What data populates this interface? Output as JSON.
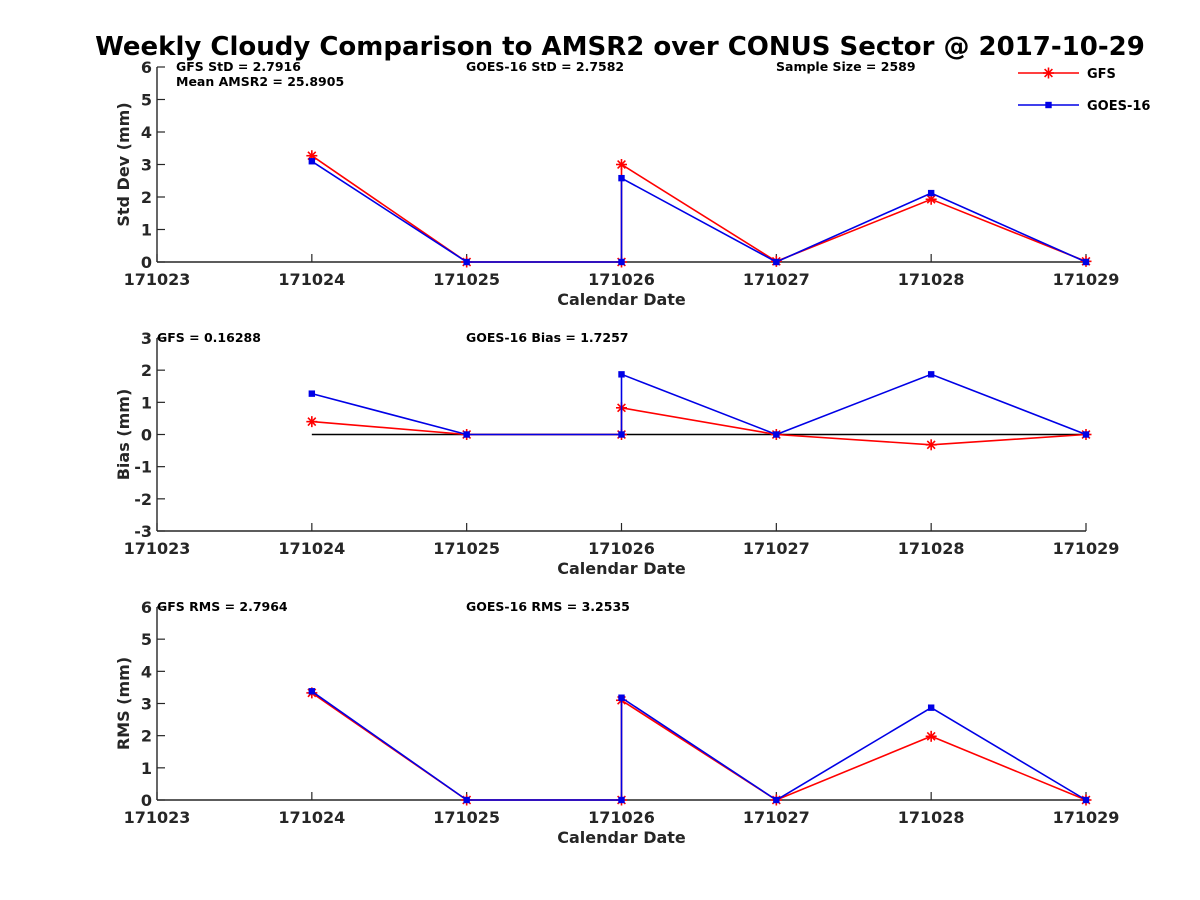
{
  "figure_title": "Weekly Cloudy Comparison to AMSR2 over CONUS Sector @ 2017-10-29",
  "colors": {
    "gfs": "#ff0000",
    "goes": "#0000e6",
    "axis": "#262626",
    "zero_line": "#000000"
  },
  "legend": {
    "placement": "top-right",
    "items": [
      {
        "label": "GFS",
        "color": "#ff0000",
        "marker": "asterisk"
      },
      {
        "label": "GOES-16",
        "color": "#0000e6",
        "marker": "square"
      }
    ]
  },
  "chart_data": [
    {
      "type": "line",
      "ylabel": "Std Dev (mm)",
      "xlabel": "Calendar Date",
      "ylim": [
        0,
        6
      ],
      "yticks": [
        0,
        1,
        2,
        3,
        4,
        5,
        6
      ],
      "xlim": [
        171023,
        171029
      ],
      "xticks": [
        "171023",
        "171024",
        "171025",
        "171026",
        "171027",
        "171028",
        "171029"
      ],
      "annotations": [
        "GFS StD = 2.7916",
        "Mean AMSR2 = 25.8905",
        "GOES-16 StD = 2.7582",
        "Sample Size = 2589"
      ],
      "zero_line": false,
      "series": [
        {
          "name": "GFS",
          "x": [
            171024,
            171025,
            171026,
            171026,
            171027,
            171028,
            171029
          ],
          "y": [
            3.27,
            0.0,
            0.0,
            3.0,
            0.02,
            1.93,
            0.02
          ]
        },
        {
          "name": "GOES-16",
          "x": [
            171024,
            171025,
            171026,
            171026,
            171027,
            171028,
            171029
          ],
          "y": [
            3.1,
            0.0,
            0.0,
            2.58,
            0.0,
            2.12,
            0.0
          ]
        }
      ]
    },
    {
      "type": "line",
      "ylabel": "Bias (mm)",
      "xlabel": "Calendar Date",
      "ylim": [
        -3,
        3
      ],
      "yticks": [
        -3,
        -2,
        -1,
        0,
        1,
        2,
        3
      ],
      "xlim": [
        171023,
        171029
      ],
      "xticks": [
        "171023",
        "171024",
        "171025",
        "171026",
        "171027",
        "171028",
        "171029"
      ],
      "annotations": [
        "GFS = 0.16288",
        "GOES-16 Bias  = 1.7257"
      ],
      "zero_line": true,
      "series": [
        {
          "name": "GFS",
          "x": [
            171024,
            171025,
            171026,
            171026,
            171027,
            171028,
            171029
          ],
          "y": [
            0.4,
            0.0,
            0.0,
            0.83,
            0.0,
            -0.32,
            0.0
          ]
        },
        {
          "name": "GOES-16",
          "x": [
            171024,
            171025,
            171026,
            171026,
            171027,
            171028,
            171029
          ],
          "y": [
            1.27,
            0.0,
            0.0,
            1.87,
            0.0,
            1.87,
            0.0
          ]
        }
      ]
    },
    {
      "type": "line",
      "ylabel": "RMS (mm)",
      "xlabel": "Calendar Date",
      "ylim": [
        0,
        6
      ],
      "yticks": [
        0,
        1,
        2,
        3,
        4,
        5,
        6
      ],
      "xlim": [
        171023,
        171029
      ],
      "xticks": [
        "171023",
        "171024",
        "171025",
        "171026",
        "171027",
        "171028",
        "171029"
      ],
      "annotations": [
        "GFS RMS = 2.7964",
        "GOES-16 RMS = 3.2535"
      ],
      "zero_line": false,
      "series": [
        {
          "name": "GFS",
          "x": [
            171024,
            171025,
            171026,
            171026,
            171027,
            171028,
            171029
          ],
          "y": [
            3.33,
            0.0,
            0.0,
            3.1,
            0.0,
            1.98,
            0.0
          ]
        },
        {
          "name": "GOES-16",
          "x": [
            171024,
            171025,
            171026,
            171026,
            171027,
            171028,
            171029
          ],
          "y": [
            3.38,
            0.0,
            0.0,
            3.18,
            0.0,
            2.87,
            0.0
          ]
        }
      ]
    }
  ]
}
